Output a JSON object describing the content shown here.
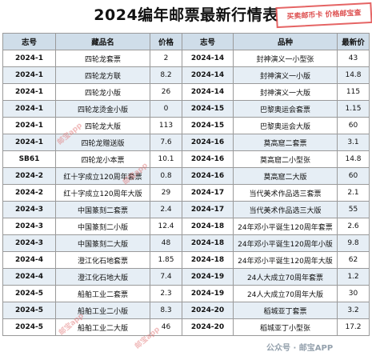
{
  "title": "2024编年邮票最新行情表",
  "stamp_text": "买卖邮币卡 价格邮宝查",
  "watermark": "邮宝app",
  "brand": "公众号 · 邮宝APP",
  "headers": [
    "志号",
    "藏品名",
    "价格",
    "志号",
    "品种",
    "最新价"
  ],
  "rows": [
    [
      "2024-1",
      "四轮龙套票",
      "2",
      "2024-14",
      "封神演义一小型张",
      "43"
    ],
    [
      "2024-1",
      "四轮龙方联",
      "8.2",
      "2024-14",
      "封神演义一小版",
      "14.8"
    ],
    [
      "2024-1",
      "四轮龙小版",
      "26",
      "2024-14",
      "封神演义一大版",
      "115"
    ],
    [
      "2024-1",
      "四轮龙烫金小版",
      "0",
      "2024-15",
      "巴黎奥运会套票",
      "1.15"
    ],
    [
      "2024-1",
      "四轮龙大版",
      "113",
      "2024-15",
      "巴黎奥运会大版",
      "60"
    ],
    [
      "2024-1",
      "四轮龙赠送版",
      "7.6",
      "2024-16",
      "莫高窟二套票",
      "3.1"
    ],
    [
      "SB61",
      "四轮龙小本票",
      "10.1",
      "2024-16",
      "莫高窟二小型张",
      "14.8"
    ],
    [
      "2024-2",
      "红十字成立120周年套票",
      "0.8",
      "2024-16",
      "莫高窟二大版",
      "60"
    ],
    [
      "2024-2",
      "红十字成立120周年大版",
      "29",
      "2024-17",
      "当代美术作品选三套票",
      "2.1"
    ],
    [
      "2024-3",
      "中国篆刻二套票",
      "2.4",
      "2024-17",
      "当代美术作品选三大版",
      "55"
    ],
    [
      "2024-3",
      "中国篆刻二小版",
      "12.4",
      "2024-18",
      "24年邓小平诞生120周年套票",
      "2.6"
    ],
    [
      "2024-3",
      "中国篆刻二大版",
      "48",
      "2024-18",
      "24年邓小平诞生120周年小版",
      "9.8"
    ],
    [
      "2024-4",
      "澄江化石地套票",
      "1.85",
      "2024-18",
      "24年邓小平诞生120周年大版",
      "62"
    ],
    [
      "2024-4",
      "澄江化石地大版",
      "7.4",
      "2024-19",
      "24人大成立70周年套票",
      "1.2"
    ],
    [
      "2024-5",
      "船舶工业二套票",
      "2.3",
      "2024-19",
      "24人大成立70周年大版",
      "30"
    ],
    [
      "2024-5",
      "船舶工业二小版",
      "8.3",
      "2024-20",
      "稻城亚丁套票",
      "3.2"
    ],
    [
      "2024-5",
      "船舶工业二大版",
      "46",
      "2024-20",
      "稻城亚丁小型张",
      "17.2"
    ]
  ]
}
